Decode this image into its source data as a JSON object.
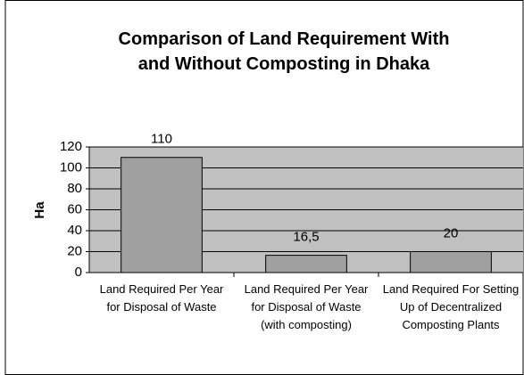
{
  "chart_data": {
    "type": "bar",
    "title": "Comparison of Land Requirement With and Without Composting in Dhaka",
    "ylabel": "Ha",
    "categories": [
      "Land Required Per Year for Disposal of Waste",
      "Land Required Per Year for Disposal of Waste (with composting)",
      "Land Required For Setting Up of Decentralized Composting Plants"
    ],
    "values": [
      110,
      16.5,
      20
    ],
    "value_labels": [
      "110",
      "16,5",
      "20"
    ],
    "color": "#a0a0a0",
    "ylim": [
      0,
      120
    ],
    "yticks": [
      0,
      20,
      40,
      60,
      80,
      100,
      120
    ],
    "grid": true
  }
}
